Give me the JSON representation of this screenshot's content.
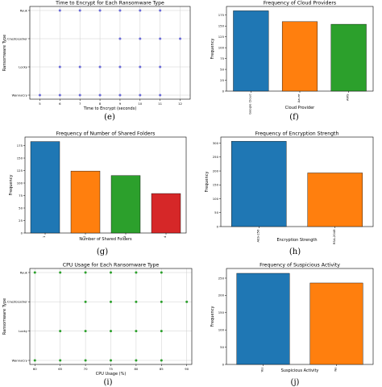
{
  "panel_labels": [
    "(e)",
    "(f)",
    "(g)",
    "(h)",
    "(i)",
    "(j)"
  ],
  "colors": {
    "blue": "#1f77b4",
    "orange": "#ff7f0e",
    "green": "#2ca02c",
    "red": "#d62728",
    "scatter_e": "#6a6ad8",
    "scatter_i": "#2ca02c"
  },
  "chart_data": [
    {
      "panel": "e",
      "type": "scatter",
      "title": "Time to Encrypt for Each Ransomware Type",
      "xlabel": "Time to Encrypt (seconds)",
      "ylabel": "Ransomware Type",
      "categories": [
        "Ryuk",
        "CryptoLocker",
        "Locky",
        "WannaCry"
      ],
      "x_ticks": [
        "5",
        "6",
        "7",
        "8",
        "9",
        "10",
        "11",
        "12"
      ],
      "xlim": [
        4.5,
        12.5
      ],
      "grid": true,
      "points": [
        {
          "category": "Ryuk",
          "x": [
            6,
            7,
            8,
            9,
            10,
            11
          ]
        },
        {
          "category": "CryptoLocker",
          "x": [
            9,
            10,
            11,
            12
          ]
        },
        {
          "category": "Locky",
          "x": [
            6,
            7,
            8,
            9,
            10,
            11
          ]
        },
        {
          "category": "WannaCry",
          "x": [
            5,
            6,
            7,
            8,
            9,
            10,
            11
          ]
        }
      ]
    },
    {
      "panel": "f",
      "type": "bar",
      "title": "Frequency of Cloud Providers",
      "xlabel": "Cloud Provider",
      "ylabel": "Frequency",
      "categories": [
        "Google Cloud",
        "Azure",
        "AWS"
      ],
      "values": [
        185,
        160,
        154
      ],
      "y_ticks": [
        "0",
        "25",
        "50",
        "75",
        "100",
        "125",
        "150",
        "175"
      ],
      "ylim": [
        0,
        195
      ]
    },
    {
      "panel": "g",
      "type": "bar",
      "title": "Frequency of Number of Shared Folders",
      "xlabel": "Number of Shared Folders",
      "ylabel": "Frequency",
      "categories": [
        "1",
        "2",
        "3",
        "4"
      ],
      "values": [
        183,
        124,
        115,
        79
      ],
      "y_ticks": [
        "0",
        "25",
        "50",
        "75",
        "100",
        "125",
        "150",
        "175"
      ],
      "ylim": [
        0,
        192
      ]
    },
    {
      "panel": "h",
      "type": "bar",
      "title": "Frequency of Encryption Strength",
      "xlabel": "Encryption Strength",
      "ylabel": "Frequency",
      "categories": [
        "AES-256",
        "RSA-2048"
      ],
      "values": [
        307,
        193
      ],
      "y_ticks": [
        "0",
        "50",
        "100",
        "150",
        "200",
        "250",
        "300"
      ],
      "ylim": [
        0,
        322
      ]
    },
    {
      "panel": "i",
      "type": "scatter",
      "title": "CPU Usage for Each Ransomware Type",
      "xlabel": "CPU Usage (%)",
      "ylabel": "Ransomware Type",
      "categories": [
        "Ryuk",
        "CryptoLocker",
        "Locky",
        "WannaCry"
      ],
      "x_ticks": [
        "60",
        "65",
        "70",
        "75",
        "80",
        "85",
        "90"
      ],
      "xlim": [
        59,
        91
      ],
      "grid": true,
      "points": [
        {
          "category": "Ryuk",
          "x": [
            60,
            65,
            70,
            75,
            80,
            85
          ]
        },
        {
          "category": "CryptoLocker",
          "x": [
            70,
            75,
            80,
            85,
            90
          ]
        },
        {
          "category": "Locky",
          "x": [
            65,
            70,
            75,
            80,
            85
          ]
        },
        {
          "category": "WannaCry",
          "x": [
            60,
            65,
            70,
            75,
            80,
            85
          ]
        }
      ]
    },
    {
      "panel": "j",
      "type": "bar",
      "title": "Frequency of Suspicious Activity",
      "xlabel": "Suspicious Activity",
      "ylabel": "Frequency",
      "categories": [
        "Yes",
        "No"
      ],
      "values": [
        264,
        236
      ],
      "y_ticks": [
        "0",
        "50",
        "100",
        "150",
        "200",
        "250"
      ],
      "ylim": [
        0,
        278
      ]
    }
  ]
}
